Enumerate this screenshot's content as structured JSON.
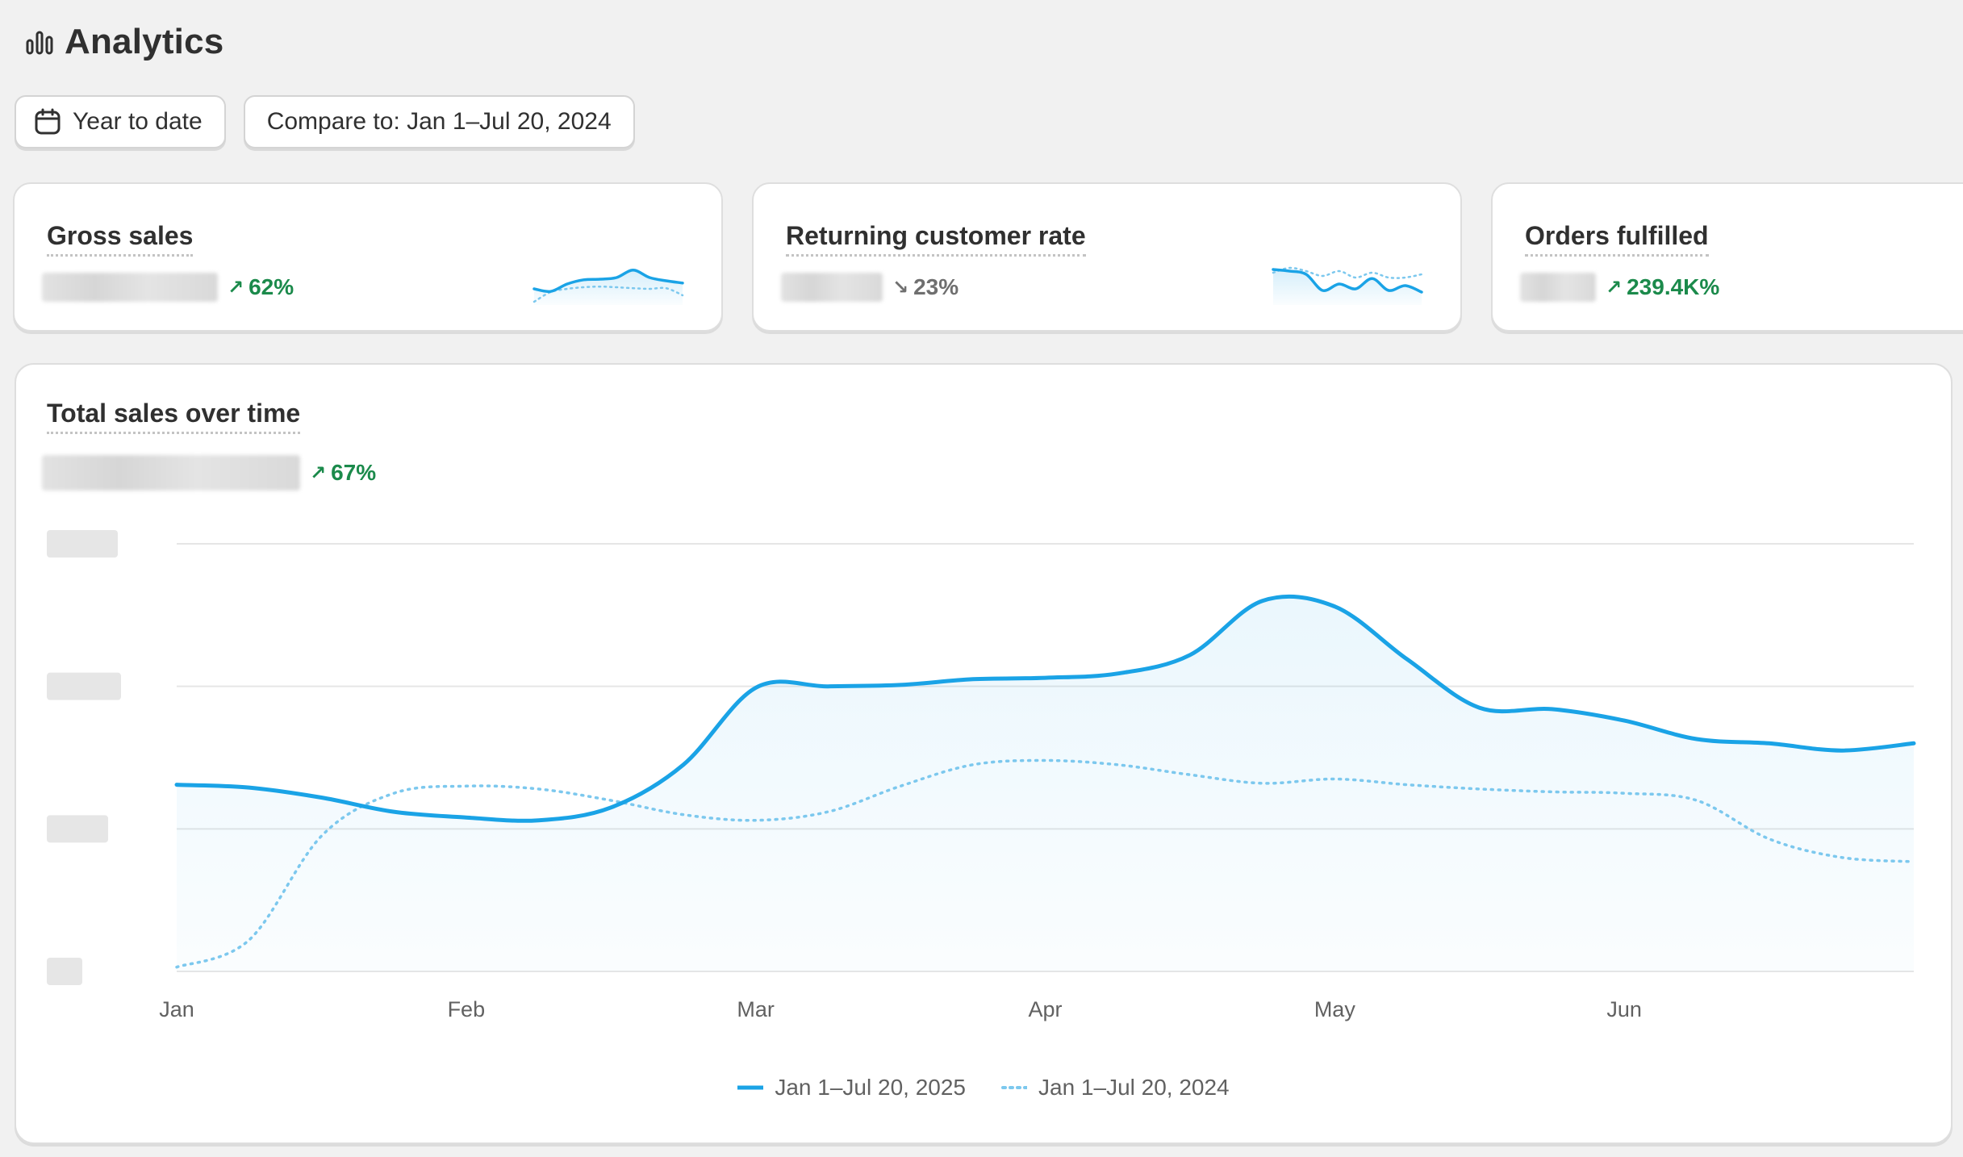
{
  "page": {
    "title": "Analytics"
  },
  "filters": {
    "date_range": "Year to date",
    "compare": "Compare to: Jan 1–Jul 20, 2024"
  },
  "metrics": [
    {
      "title": "Gross sales",
      "change": "62%",
      "direction": "up"
    },
    {
      "title": "Returning customer rate",
      "change": "23%",
      "direction": "down"
    },
    {
      "title": "Orders fulfilled",
      "change": "239.4K%",
      "direction": "up"
    }
  ],
  "chart": {
    "title": "Total sales over time",
    "change": "67%",
    "direction": "up"
  },
  "colors": {
    "accent": "#1aa3e6",
    "positive": "#1b8a4b",
    "neutral": "#6f6f6f",
    "grid": "#e6e6e6"
  },
  "chart_data": {
    "type": "line",
    "title": "Total sales over time",
    "categories": [
      "Jan",
      "Feb",
      "Mar",
      "Apr",
      "May",
      "Jun"
    ],
    "x": [
      0,
      0.25,
      0.5,
      0.75,
      1,
      1.25,
      1.5,
      1.75,
      2,
      2.25,
      2.5,
      2.75,
      3,
      3.25,
      3.5,
      3.75,
      4,
      4.25,
      4.5,
      4.75,
      5,
      5.25,
      5.5,
      5.75,
      6
    ],
    "series": [
      {
        "name": "Jan 1–Jul 20, 2025",
        "style": "solid",
        "values": [
          1.31,
          1.29,
          1.22,
          1.12,
          1.08,
          1.06,
          1.15,
          1.45,
          1.99,
          2.0,
          2.01,
          2.05,
          2.06,
          2.09,
          2.22,
          2.6,
          2.56,
          2.19,
          1.85,
          1.84,
          1.76,
          1.63,
          1.6,
          1.55,
          1.6
        ]
      },
      {
        "name": "Jan 1–Jul 20, 2024",
        "style": "dotted",
        "values": [
          0.03,
          0.22,
          0.95,
          1.25,
          1.3,
          1.28,
          1.2,
          1.1,
          1.06,
          1.12,
          1.3,
          1.45,
          1.48,
          1.45,
          1.38,
          1.32,
          1.35,
          1.31,
          1.28,
          1.26,
          1.25,
          1.2,
          0.93,
          0.8,
          0.77
        ]
      }
    ],
    "ylim": [
      0,
      3
    ],
    "grid": true,
    "legend_position": "bottom-center",
    "ytick_labels_hidden": true
  },
  "sparklines": {
    "gross_sales": {
      "current": [
        0.2,
        0.12,
        0.35,
        0.48,
        0.5,
        0.55,
        0.78,
        0.55,
        0.45,
        0.38
      ],
      "previous": [
        -0.2,
        0.1,
        0.2,
        0.25,
        0.27,
        0.25,
        0.22,
        0.2,
        0.22,
        0.0
      ]
    },
    "returning_rate": {
      "current": [
        0.8,
        0.75,
        0.65,
        0.15,
        0.35,
        0.2,
        0.52,
        0.15,
        0.3,
        0.1
      ],
      "previous": [
        0.7,
        0.85,
        0.75,
        0.6,
        0.75,
        0.55,
        0.7,
        0.55,
        0.55,
        0.65
      ]
    }
  }
}
